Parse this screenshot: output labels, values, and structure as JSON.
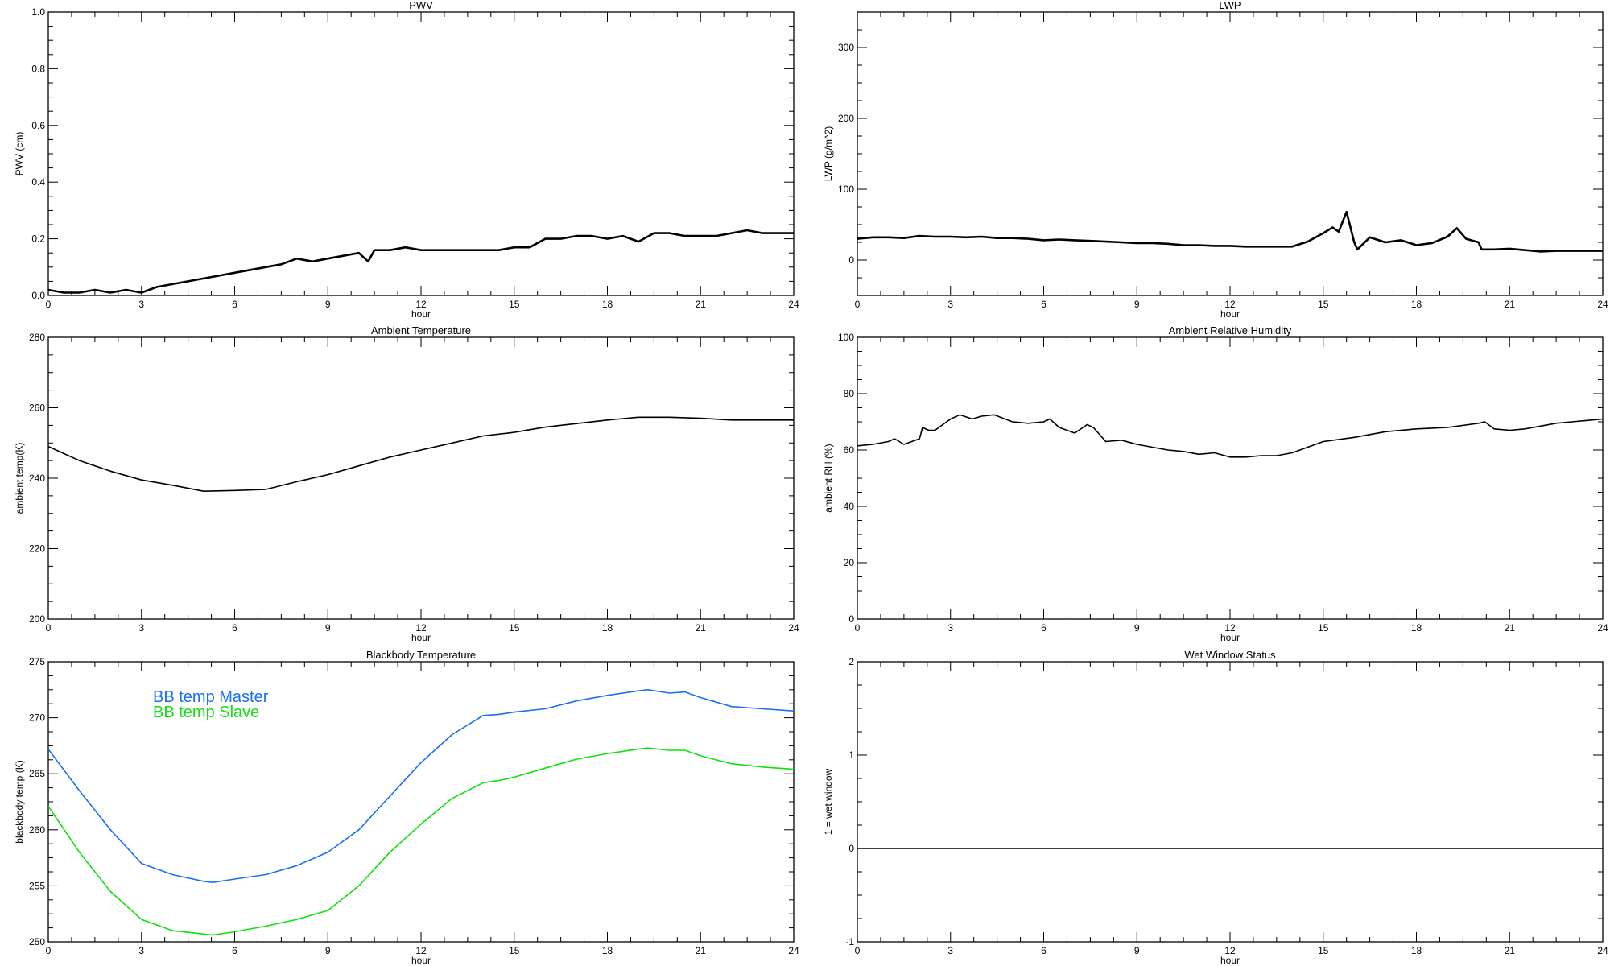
{
  "chart_data": [
    {
      "type": "line",
      "title": "PWV",
      "xlabel": "hour",
      "ylabel": "PWV (cm)",
      "xlim": [
        0,
        24
      ],
      "ylim": [
        0,
        1.0
      ],
      "xticks": [
        "0",
        "3",
        "6",
        "9",
        "12",
        "15",
        "18",
        "21",
        "24"
      ],
      "yticks": [
        "0.0",
        "0.2",
        "0.4",
        "0.6",
        "0.8",
        "1.0"
      ],
      "ytick_values": [
        0,
        0.2,
        0.4,
        0.6,
        0.8,
        1.0
      ],
      "grid": false,
      "series": [
        {
          "color": "#000000",
          "x": [
            0,
            0.5,
            1,
            1.5,
            2,
            2.5,
            3,
            3.5,
            4,
            4.5,
            5,
            5.5,
            6,
            6.5,
            7,
            7.5,
            8,
            8.5,
            9,
            9.5,
            10,
            10.3,
            10.5,
            11,
            11.5,
            12,
            12.5,
            13,
            13.5,
            14,
            14.5,
            15,
            15.5,
            16,
            16.5,
            17,
            17.5,
            18,
            18.5,
            19,
            19.5,
            20,
            20.5,
            21,
            21.5,
            22,
            22.5,
            23,
            23.5,
            24
          ],
          "y": [
            0.02,
            0.01,
            0.01,
            0.02,
            0.01,
            0.02,
            0.01,
            0.03,
            0.04,
            0.05,
            0.06,
            0.07,
            0.08,
            0.09,
            0.1,
            0.11,
            0.13,
            0.12,
            0.13,
            0.14,
            0.15,
            0.12,
            0.16,
            0.16,
            0.17,
            0.16,
            0.16,
            0.16,
            0.16,
            0.16,
            0.16,
            0.17,
            0.17,
            0.2,
            0.2,
            0.21,
            0.21,
            0.2,
            0.21,
            0.19,
            0.22,
            0.22,
            0.21,
            0.21,
            0.21,
            0.22,
            0.23,
            0.22,
            0.22,
            0.22
          ]
        }
      ]
    },
    {
      "type": "line",
      "title": "LWP",
      "xlabel": "hour",
      "ylabel": "LWP (g/m^2)",
      "xlim": [
        0,
        24
      ],
      "ylim": [
        -50,
        350
      ],
      "xticks": [
        "0",
        "3",
        "6",
        "9",
        "12",
        "15",
        "18",
        "21",
        "24"
      ],
      "yticks": [
        "0",
        "100",
        "200",
        "300"
      ],
      "ytick_values": [
        0,
        100,
        200,
        300
      ],
      "grid": false,
      "series": [
        {
          "color": "#000000",
          "x": [
            0,
            0.5,
            1,
            1.5,
            2,
            2.5,
            3,
            3.5,
            4,
            4.5,
            5,
            5.5,
            6,
            6.5,
            7,
            7.5,
            8,
            8.5,
            9,
            9.5,
            10,
            10.5,
            11,
            11.5,
            12,
            12.5,
            13,
            13.5,
            14,
            14.5,
            15,
            15.3,
            15.5,
            15.75,
            16,
            16.1,
            16.5,
            17,
            17.5,
            18,
            18.5,
            19,
            19.3,
            19.6,
            20,
            20.1,
            20.5,
            21,
            21.5,
            22,
            22.5,
            23,
            23.5,
            24
          ],
          "y": [
            30,
            32,
            32,
            31,
            34,
            33,
            33,
            32,
            33,
            31,
            31,
            30,
            28,
            29,
            28,
            27,
            26,
            25,
            24,
            24,
            23,
            21,
            21,
            20,
            20,
            19,
            19,
            19,
            19,
            26,
            38,
            46,
            40,
            68,
            25,
            15,
            32,
            25,
            28,
            21,
            24,
            33,
            45,
            30,
            25,
            15,
            15,
            16,
            14,
            12,
            13,
            13,
            13,
            13
          ]
        }
      ]
    },
    {
      "type": "line",
      "title": "Ambient Temperature",
      "xlabel": "hour",
      "ylabel": "ambient temp(K)",
      "xlim": [
        0,
        24
      ],
      "ylim": [
        200,
        280
      ],
      "xticks": [
        "0",
        "3",
        "6",
        "9",
        "12",
        "15",
        "18",
        "21",
        "24"
      ],
      "yticks": [
        "200",
        "220",
        "240",
        "260",
        "280"
      ],
      "ytick_values": [
        200,
        220,
        240,
        260,
        280
      ],
      "grid": false,
      "series": [
        {
          "color": "#000000",
          "x": [
            0,
            1,
            2,
            3,
            4,
            5,
            6,
            7,
            8,
            9,
            10,
            11,
            12,
            13,
            14,
            15,
            16,
            17,
            18,
            19,
            20,
            21,
            22,
            23,
            24
          ],
          "y": [
            249,
            245,
            242,
            239.5,
            238,
            236.3,
            236.5,
            236.8,
            239,
            241,
            243.5,
            246,
            248,
            250,
            252,
            253,
            254.5,
            255.5,
            256.5,
            257.3,
            257.3,
            257,
            256.5,
            256.5,
            256.5
          ]
        }
      ]
    },
    {
      "type": "line",
      "title": "Ambient Relative Humidity",
      "xlabel": "hour",
      "ylabel": "ambient RH (%)",
      "xlim": [
        0,
        24
      ],
      "ylim": [
        0,
        100
      ],
      "xticks": [
        "0",
        "3",
        "6",
        "9",
        "12",
        "15",
        "18",
        "21",
        "24"
      ],
      "yticks": [
        "0",
        "20",
        "40",
        "60",
        "80",
        "100"
      ],
      "ytick_values": [
        0,
        20,
        40,
        60,
        80,
        100
      ],
      "grid": false,
      "series": [
        {
          "color": "#000000",
          "x": [
            0,
            0.5,
            1,
            1.2,
            1.5,
            2,
            2.1,
            2.3,
            2.5,
            3,
            3.3,
            3.7,
            4,
            4.4,
            5,
            5.5,
            6,
            6.2,
            6.5,
            7,
            7.4,
            7.6,
            8,
            8.5,
            9,
            9.5,
            10,
            10.5,
            11,
            11.5,
            12,
            12.5,
            13,
            13.5,
            14,
            14.5,
            15,
            16,
            17,
            18,
            19,
            20,
            20.2,
            20.5,
            21,
            21.5,
            22,
            22.5,
            23,
            23.5,
            24
          ],
          "y": [
            61.5,
            62,
            63,
            64,
            62,
            64,
            68,
            67,
            67,
            71,
            72.5,
            71,
            72,
            72.5,
            70,
            69.5,
            70,
            71,
            68,
            66,
            69,
            68,
            63,
            63.5,
            62,
            61,
            60,
            59.5,
            58.5,
            59,
            57.5,
            57.5,
            58,
            58,
            59,
            61,
            63,
            64.5,
            66.5,
            67.5,
            68,
            69.5,
            70,
            67.5,
            67,
            67.5,
            68.5,
            69.5,
            70,
            70.5,
            71
          ]
        }
      ]
    },
    {
      "type": "line",
      "title": "Blackbody Temperature",
      "xlabel": "hour",
      "ylabel": "blackbody temp (K)",
      "xlim": [
        0,
        24
      ],
      "ylim": [
        250,
        275
      ],
      "xticks": [
        "0",
        "3",
        "6",
        "9",
        "12",
        "15",
        "18",
        "21",
        "24"
      ],
      "yticks": [
        "250",
        "255",
        "260",
        "265",
        "270",
        "275"
      ],
      "ytick_values": [
        250,
        255,
        260,
        265,
        270,
        275
      ],
      "grid": false,
      "legend": "top-left",
      "series": [
        {
          "name": "BB temp Master",
          "color": "#1a70f0",
          "x": [
            0,
            1,
            2,
            3,
            4,
            5,
            5.3,
            6,
            7,
            8,
            9,
            10,
            11,
            12,
            13,
            14,
            14.5,
            15,
            16,
            17,
            18,
            19,
            19.3,
            20,
            20.5,
            21,
            22,
            23,
            24
          ],
          "y": [
            267.2,
            263.5,
            260,
            257,
            256,
            255.4,
            255.3,
            255.6,
            256,
            256.8,
            258,
            260,
            263,
            266,
            268.5,
            270.2,
            270.3,
            270.5,
            270.8,
            271.5,
            272,
            272.4,
            272.5,
            272.2,
            272.3,
            271.8,
            271,
            270.8,
            270.6
          ]
        },
        {
          "name": "BB temp Slave",
          "color": "#10e010",
          "x": [
            0,
            1,
            2,
            3,
            4,
            5,
            5.3,
            6,
            7,
            8,
            9,
            10,
            11,
            12,
            13,
            14,
            14.5,
            15,
            16,
            17,
            18,
            19,
            19.3,
            20,
            20.5,
            21,
            22,
            23,
            24
          ],
          "y": [
            262.1,
            258,
            254.5,
            252,
            251,
            250.7,
            250.6,
            250.9,
            251.4,
            252,
            252.8,
            255,
            258,
            260.5,
            262.8,
            264.2,
            264.4,
            264.7,
            265.5,
            266.3,
            266.8,
            267.2,
            267.3,
            267.1,
            267.1,
            266.6,
            265.9,
            265.6,
            265.4
          ]
        }
      ]
    },
    {
      "type": "line",
      "title": "Wet Window Status",
      "xlabel": "hour",
      "ylabel": "1 = wet window",
      "xlim": [
        0,
        24
      ],
      "ylim": [
        -1,
        2
      ],
      "xticks": [
        "0",
        "3",
        "6",
        "9",
        "12",
        "15",
        "18",
        "21",
        "24"
      ],
      "yticks": [
        "-1",
        "0",
        "1",
        "2"
      ],
      "ytick_values": [
        -1,
        0,
        1,
        2
      ],
      "grid": false,
      "series": [
        {
          "color": "#000000",
          "x": [
            0,
            24
          ],
          "y": [
            0,
            0
          ]
        }
      ]
    }
  ]
}
